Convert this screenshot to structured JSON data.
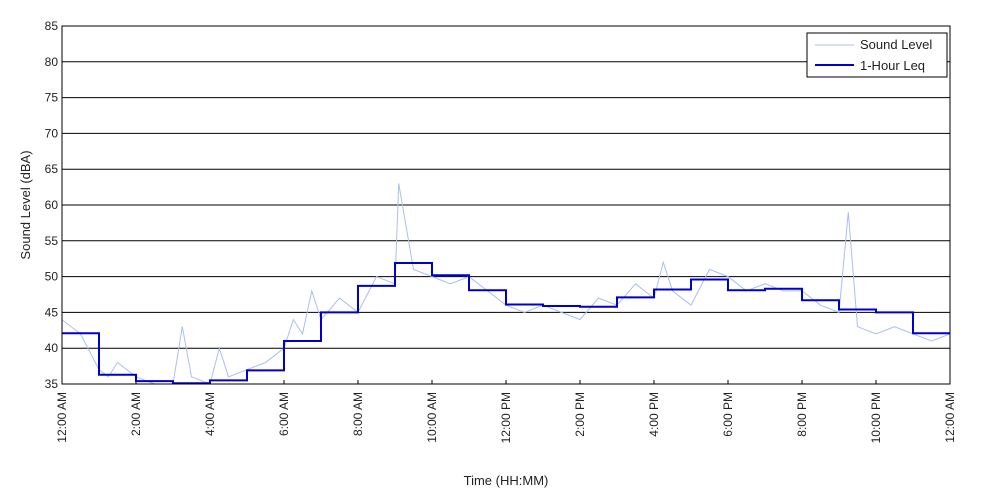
{
  "chart_data": {
    "type": "line",
    "title": "",
    "xlabel": "Time (HH:MM)",
    "ylabel": "Sound Level (dBA)",
    "ylim": [
      35,
      85
    ],
    "yticks": [
      35,
      40,
      45,
      50,
      55,
      60,
      65,
      70,
      75,
      80,
      85
    ],
    "xlim": [
      0,
      24
    ],
    "xticks": [
      {
        "hour": 0,
        "label": "12:00 AM"
      },
      {
        "hour": 2,
        "label": "2:00 AM"
      },
      {
        "hour": 4,
        "label": "4:00 AM"
      },
      {
        "hour": 6,
        "label": "6:00 AM"
      },
      {
        "hour": 8,
        "label": "8:00 AM"
      },
      {
        "hour": 10,
        "label": "10:00 AM"
      },
      {
        "hour": 12,
        "label": "12:00 PM"
      },
      {
        "hour": 14,
        "label": "2:00 PM"
      },
      {
        "hour": 16,
        "label": "4:00 PM"
      },
      {
        "hour": 18,
        "label": "6:00 PM"
      },
      {
        "hour": 20,
        "label": "8:00 PM"
      },
      {
        "hour": 22,
        "label": "10:00 PM"
      },
      {
        "hour": 24,
        "label": "12:00 AM"
      }
    ],
    "grid": "horizontal",
    "legend_position": "top-right",
    "series": [
      {
        "name": "Sound Level",
        "color": "#a9bff0",
        "style": "thin-line",
        "x": [
          0,
          0.5,
          1,
          1.25,
          1.5,
          2,
          2.5,
          3,
          3.25,
          3.5,
          4,
          4.25,
          4.5,
          5,
          5.5,
          6,
          6.25,
          6.5,
          6.75,
          7,
          7.5,
          8,
          8.5,
          9,
          9.1,
          9.5,
          10,
          10.5,
          11,
          11.5,
          12,
          12.5,
          13,
          13.5,
          14,
          14.5,
          15,
          15.5,
          16,
          16.25,
          16.5,
          17,
          17.5,
          18,
          18.5,
          19,
          19.5,
          20,
          20.5,
          21,
          21.25,
          21.5,
          22,
          22.5,
          23,
          23.5,
          24
        ],
        "values": [
          44,
          42,
          37,
          36,
          38,
          36,
          35,
          35,
          43,
          36,
          35,
          40,
          36,
          37,
          38,
          40,
          44,
          42,
          48,
          44,
          47,
          45,
          50,
          49,
          63,
          51,
          50,
          49,
          50,
          48,
          46,
          45,
          46,
          45,
          44,
          47,
          46,
          49,
          47,
          52,
          48,
          46,
          51,
          50,
          48,
          49,
          48,
          48,
          46,
          45,
          59,
          43,
          42,
          43,
          42,
          41,
          42
        ]
      },
      {
        "name": "1-Hour Leq",
        "color": "#0000cc",
        "style": "step",
        "hours": [
          0,
          1,
          2,
          3,
          4,
          5,
          6,
          7,
          8,
          9,
          10,
          11,
          12,
          13,
          14,
          15,
          16,
          17,
          18,
          19,
          20,
          21,
          22,
          23
        ],
        "values": [
          42.1,
          36.3,
          35.4,
          35.1,
          35.5,
          36.9,
          41.0,
          45.0,
          48.7,
          51.9,
          50.2,
          48.1,
          46.1,
          45.9,
          45.8,
          47.1,
          48.2,
          49.6,
          48.1,
          48.3,
          46.7,
          45.4,
          45.0,
          42.1
        ]
      }
    ]
  }
}
